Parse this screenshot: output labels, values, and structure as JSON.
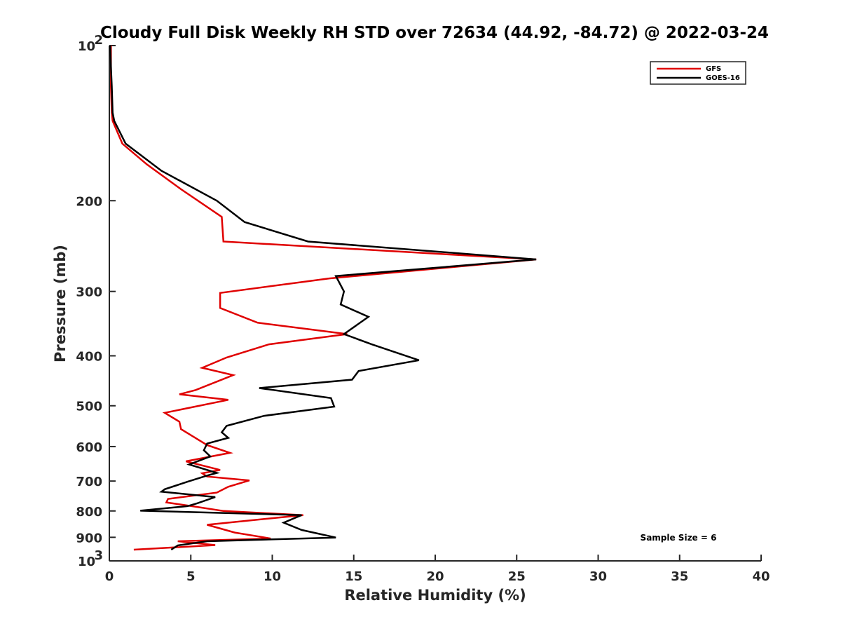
{
  "chart_data": {
    "type": "line",
    "title": "Cloudy Full Disk Weekly RH STD over 72634 (44.92, -84.72) @ 2022-03-24",
    "xlabel": "Relative Humidity (%)",
    "ylabel": "Pressure (mb)",
    "xlim": [
      0,
      40
    ],
    "ylim": [
      100,
      1000
    ],
    "y_scale": "log",
    "y_reversed": true,
    "grid": false,
    "legend_position": "top-right",
    "x_ticks": [
      "0",
      "5",
      "10",
      "15",
      "20",
      "25",
      "30",
      "35",
      "40"
    ],
    "y_ticks": [
      {
        "value": 100,
        "base": "10",
        "exp": "2"
      },
      {
        "value": 200,
        "label": "200"
      },
      {
        "value": 300,
        "label": "300"
      },
      {
        "value": 400,
        "label": "400"
      },
      {
        "value": 500,
        "label": "500"
      },
      {
        "value": 600,
        "label": "600"
      },
      {
        "value": 700,
        "label": "700"
      },
      {
        "value": 800,
        "label": "800"
      },
      {
        "value": 900,
        "label": "900"
      },
      {
        "value": 1000,
        "base": "10",
        "exp": "3"
      }
    ],
    "annotation": "Sample Size = 6",
    "series": [
      {
        "name": "GFS",
        "color": "#e00000",
        "points": [
          [
            0.1,
            100
          ],
          [
            0.1,
            110
          ],
          [
            0.1,
            120
          ],
          [
            0.15,
            135
          ],
          [
            0.2,
            140
          ],
          [
            0.8,
            155
          ],
          [
            2.3,
            170
          ],
          [
            4.4,
            190
          ],
          [
            6.9,
            215
          ],
          [
            7.0,
            240
          ],
          [
            26.2,
            260
          ],
          [
            13.5,
            283
          ],
          [
            6.8,
            302
          ],
          [
            6.8,
            323
          ],
          [
            9.1,
            345
          ],
          [
            14.6,
            363
          ],
          [
            9.8,
            380
          ],
          [
            7.2,
            403
          ],
          [
            5.7,
            422
          ],
          [
            7.6,
            436
          ],
          [
            5.3,
            466
          ],
          [
            4.3,
            475
          ],
          [
            7.3,
            487
          ],
          [
            3.4,
            516
          ],
          [
            4.3,
            537
          ],
          [
            4.4,
            555
          ],
          [
            5.2,
            575
          ],
          [
            6.0,
            596
          ],
          [
            7.4,
            617
          ],
          [
            4.7,
            641
          ],
          [
            6.8,
            666
          ],
          [
            5.7,
            676
          ],
          [
            6.0,
            686
          ],
          [
            8.6,
            698
          ],
          [
            7.3,
            718
          ],
          [
            6.6,
            737
          ],
          [
            3.6,
            758
          ],
          [
            3.5,
            770
          ],
          [
            5.4,
            786
          ],
          [
            7.0,
            800
          ],
          [
            11.9,
            815
          ],
          [
            6.0,
            851
          ],
          [
            7.7,
            881
          ],
          [
            9.9,
            905
          ],
          [
            4.2,
            916
          ],
          [
            6.5,
            932
          ],
          [
            1.5,
            951
          ]
        ]
      },
      {
        "name": "GOES-16",
        "color": "#000000",
        "points": [
          [
            0.05,
            100
          ],
          [
            0.1,
            110
          ],
          [
            0.15,
            120
          ],
          [
            0.2,
            135
          ],
          [
            0.3,
            140
          ],
          [
            1.0,
            155
          ],
          [
            3.2,
            175
          ],
          [
            6.6,
            200
          ],
          [
            8.3,
            220
          ],
          [
            12.2,
            240
          ],
          [
            26.2,
            260
          ],
          [
            13.9,
            280
          ],
          [
            14.4,
            300
          ],
          [
            14.2,
            318
          ],
          [
            15.9,
            336
          ],
          [
            14.4,
            363
          ],
          [
            16.1,
            380
          ],
          [
            19.0,
            408
          ],
          [
            15.3,
            428
          ],
          [
            14.9,
            445
          ],
          [
            9.2,
            462
          ],
          [
            13.6,
            483
          ],
          [
            13.8,
            502
          ],
          [
            9.5,
            523
          ],
          [
            7.2,
            547
          ],
          [
            6.9,
            563
          ],
          [
            7.3,
            577
          ],
          [
            6.0,
            592
          ],
          [
            5.8,
            610
          ],
          [
            6.2,
            627
          ],
          [
            4.9,
            650
          ],
          [
            6.6,
            675
          ],
          [
            6.0,
            683
          ],
          [
            4.8,
            702
          ],
          [
            3.4,
            726
          ],
          [
            3.2,
            734
          ],
          [
            6.5,
            752
          ],
          [
            5.4,
            773
          ],
          [
            4.8,
            783
          ],
          [
            1.9,
            799
          ],
          [
            11.8,
            815
          ],
          [
            10.7,
            843
          ],
          [
            11.8,
            871
          ],
          [
            13.9,
            901
          ],
          [
            6.0,
            916
          ],
          [
            4.2,
            933
          ],
          [
            3.8,
            951
          ]
        ]
      }
    ]
  }
}
